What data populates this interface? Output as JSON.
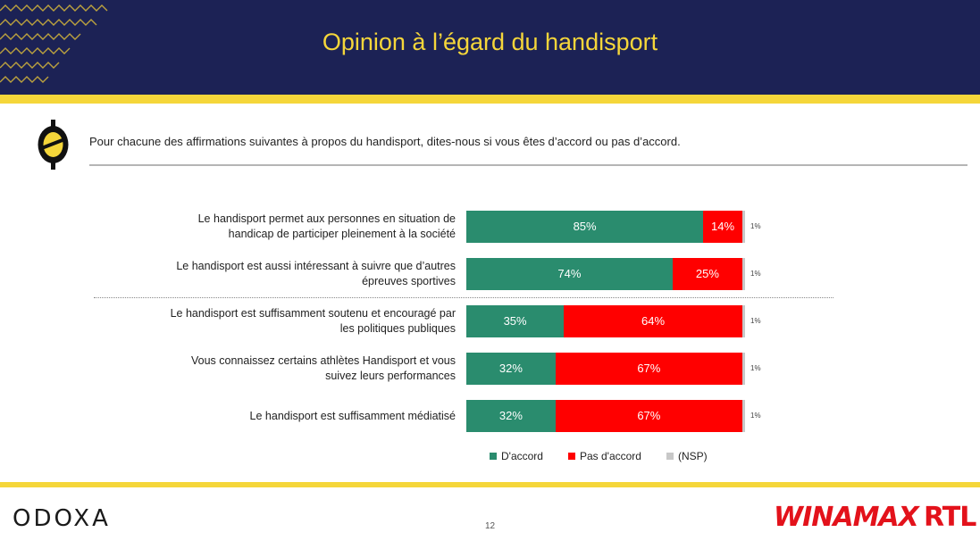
{
  "slide": {
    "title": "Opinion à l’égard du handisport",
    "question": "Pour chacune des affirmations suivantes à propos du handisport, dites-nous si vous êtes d’accord ou pas d’accord.",
    "page_number": "12"
  },
  "footer": {
    "brand": "ODOXA",
    "sponsor_1": "WINAMAX",
    "sponsor_2": "RTL"
  },
  "colors": {
    "header_bg": "#1c2255",
    "accent_yellow": "#f5d63a",
    "agree": "#2a8c6e",
    "disagree": "#ff0000",
    "nsp": "#c8c8c8"
  },
  "chart_data": {
    "type": "bar",
    "orientation": "horizontal",
    "stacked": true,
    "categories": [
      [
        "Le handisport permet aux personnes en situation de",
        "handicap de participer pleinement à la société"
      ],
      [
        "Le handisport est aussi intéressant à suivre que d’autres",
        "épreuves sportives"
      ],
      [
        "Le handisport est suffisamment soutenu et encouragé par",
        "les politiques publiques"
      ],
      [
        "Vous connaissez certains athlètes Handisport et vous",
        "suivez leurs performances"
      ],
      [
        "Le handisport est suffisamment médiatisé"
      ]
    ],
    "series": [
      {
        "name": "D'accord",
        "color": "#2a8c6e",
        "values": [
          85,
          74,
          35,
          32,
          32
        ],
        "labels": [
          "85%",
          "74%",
          "35%",
          "32%",
          "32%"
        ]
      },
      {
        "name": "Pas d'accord",
        "color": "#ff0000",
        "values": [
          14,
          25,
          64,
          67,
          67
        ],
        "labels": [
          "14%",
          "25%",
          "64%",
          "67%",
          "67%"
        ]
      },
      {
        "name": "(NSP)",
        "color": "#c8c8c8",
        "values": [
          1,
          1,
          1,
          1,
          1
        ],
        "labels": [
          "1%",
          "1%",
          "1%",
          "1%",
          "1%"
        ]
      }
    ],
    "xlim": [
      0,
      100
    ],
    "separator_after_index": 1,
    "legend_position": "bottom"
  }
}
